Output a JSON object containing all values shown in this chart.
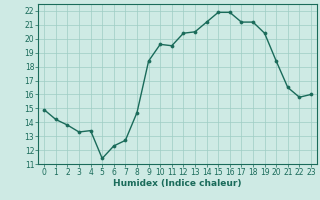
{
  "x": [
    0,
    1,
    2,
    3,
    4,
    5,
    6,
    7,
    8,
    9,
    10,
    11,
    12,
    13,
    14,
    15,
    16,
    17,
    18,
    19,
    20,
    21,
    22,
    23
  ],
  "y": [
    14.9,
    14.2,
    13.8,
    13.3,
    13.4,
    11.4,
    12.3,
    12.7,
    14.7,
    18.4,
    19.6,
    19.5,
    20.4,
    20.5,
    21.2,
    21.9,
    21.9,
    21.2,
    21.2,
    20.4,
    18.4,
    16.5,
    15.8,
    16.0
  ],
  "xlabel": "Humidex (Indice chaleur)",
  "ylabel": "",
  "ylim": [
    11,
    22.5
  ],
  "xlim": [
    -0.5,
    23.5
  ],
  "yticks": [
    11,
    12,
    13,
    14,
    15,
    16,
    17,
    18,
    19,
    20,
    21,
    22
  ],
  "xticks": [
    0,
    1,
    2,
    3,
    4,
    5,
    6,
    7,
    8,
    9,
    10,
    11,
    12,
    13,
    14,
    15,
    16,
    17,
    18,
    19,
    20,
    21,
    22,
    23
  ],
  "line_color": "#1a6b5a",
  "marker_color": "#1a6b5a",
  "bg_color": "#ceeae4",
  "grid_color": "#9ecdc4",
  "xlabel_fontsize": 6.5,
  "tick_fontsize": 5.5,
  "marker_size": 2.2,
  "line_width": 1.0
}
